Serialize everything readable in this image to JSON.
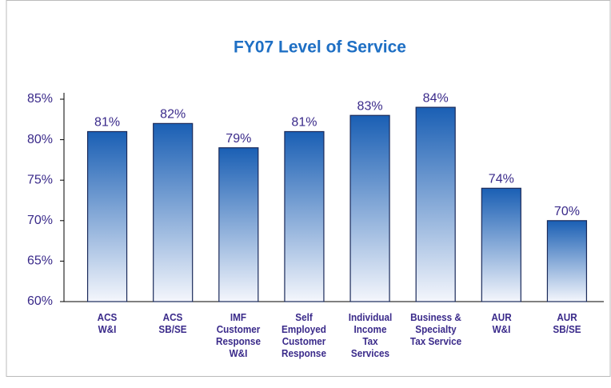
{
  "chart_data": {
    "type": "bar",
    "title": "FY07 Level of Service",
    "categories": [
      "ACS\nW&I",
      "ACS\nSB/SE",
      "IMF\nCustomer\nResponse\nW&I",
      "Self\nEmployed\nCustomer\nResponse",
      "Individual\nIncome\nTax\nServices",
      "Business &\nSpecialty\nTax Service",
      "AUR\nW&I",
      "AUR\nSB/SE"
    ],
    "values": [
      81,
      82,
      79,
      81,
      83,
      84,
      74,
      70
    ],
    "value_labels": [
      "81%",
      "82%",
      "79%",
      "81%",
      "83%",
      "84%",
      "74%",
      "70%"
    ],
    "color": "#1a5fb4",
    "ylim": [
      60,
      85
    ],
    "yticks": [
      {
        "value": 60,
        "label": "60%"
      },
      {
        "value": 65,
        "label": "65%"
      },
      {
        "value": 70,
        "label": "70%"
      },
      {
        "value": 75,
        "label": "75%"
      },
      {
        "value": 80,
        "label": "80%"
      },
      {
        "value": 85,
        "label": "85%"
      }
    ],
    "grid": false
  }
}
